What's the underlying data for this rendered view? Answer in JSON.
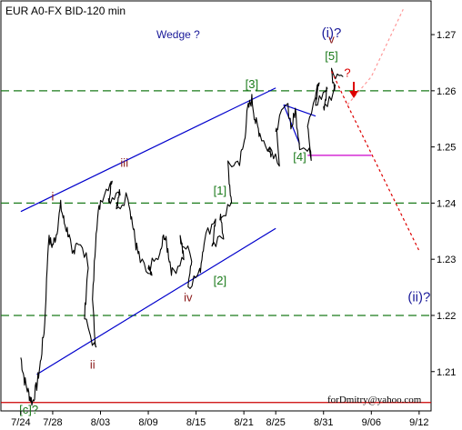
{
  "chart_data": {
    "type": "line",
    "title": "EUR A0-FX BID-120 min",
    "subtitle": "Wedge ?",
    "watermark": "forDmitry@yahoo.com",
    "x_ticks": [
      "7/24",
      "7/28",
      "8/03",
      "8/09",
      "8/15",
      "8/21",
      "8/25",
      "8/31",
      "9/06",
      "9/12"
    ],
    "y_ticks": [
      "1.27",
      "1.26",
      "1.25",
      "1.24",
      "1.23",
      "1.22",
      "1.21"
    ],
    "ylim": [
      1.203,
      1.276
    ],
    "grid": false,
    "series": [
      {
        "points": [
          [
            "7/24",
            1.2125
          ],
          [
            "7/24",
            1.2085
          ],
          [
            "7/25",
            1.206
          ],
          [
            "7/25",
            1.2045
          ],
          [
            "7/26",
            1.2075
          ],
          [
            "7/26",
            1.2115
          ],
          [
            "7/27",
            1.2185
          ],
          [
            "7/27",
            1.2335
          ],
          [
            "7/28",
            1.2325
          ],
          [
            "7/28",
            1.2345
          ],
          [
            "7/29",
            1.2395
          ],
          [
            "7/29",
            1.2365
          ],
          [
            "7/30",
            1.2345
          ],
          [
            "7/30",
            1.2305
          ],
          [
            "7/31",
            1.2335
          ],
          [
            "8/01",
            1.2295
          ],
          [
            "8/01",
            1.2195
          ],
          [
            "8/02",
            1.2135
          ],
          [
            "8/02",
            1.2225
          ],
          [
            "8/02",
            1.2355
          ],
          [
            "8/03",
            1.2405
          ],
          [
            "8/04",
            1.2445
          ],
          [
            "8/04",
            1.2405
          ],
          [
            "8/05",
            1.2425
          ],
          [
            "8/05",
            1.2385
          ],
          [
            "8/06",
            1.2415
          ],
          [
            "8/07",
            1.2365
          ],
          [
            "8/07",
            1.2325
          ],
          [
            "8/08",
            1.2295
          ],
          [
            "8/09",
            1.2265
          ],
          [
            "8/09",
            1.2285
          ],
          [
            "8/10",
            1.2305
          ],
          [
            "8/11",
            1.2345
          ],
          [
            "8/11",
            1.2315
          ],
          [
            "8/12",
            1.2275
          ],
          [
            "8/13",
            1.2305
          ],
          [
            "8/13",
            1.2335
          ],
          [
            "8/14",
            1.2305
          ],
          [
            "8/14",
            1.2255
          ],
          [
            "8/15",
            1.2275
          ],
          [
            "8/16",
            1.2335
          ],
          [
            "8/17",
            1.2375
          ],
          [
            "8/17",
            1.2315
          ],
          [
            "8/18",
            1.2345
          ],
          [
            "8/18",
            1.2375
          ],
          [
            "8/19",
            1.2395
          ],
          [
            "8/19",
            1.2465
          ],
          [
            "8/20",
            1.2475
          ],
          [
            "8/21",
            1.2505
          ],
          [
            "8/21",
            1.2565
          ],
          [
            "8/22",
            1.2585
          ],
          [
            "8/22",
            1.2545
          ],
          [
            "8/23",
            1.2525
          ],
          [
            "8/24",
            1.2485
          ],
          [
            "8/24",
            1.2505
          ],
          [
            "8/25",
            1.2475
          ],
          [
            "8/25",
            1.2535
          ],
          [
            "8/26",
            1.2575
          ],
          [
            "8/27",
            1.2535
          ],
          [
            "8/27",
            1.2565
          ],
          [
            "8/28",
            1.2505
          ],
          [
            "8/29",
            1.2485
          ],
          [
            "8/29",
            1.2545
          ],
          [
            "8/30",
            1.2615
          ],
          [
            "8/30",
            1.2575
          ],
          [
            "8/31",
            1.2605
          ],
          [
            "8/31",
            1.2565
          ],
          [
            "9/01",
            1.2605
          ],
          [
            "9/01",
            1.2635
          ],
          [
            "9/02",
            1.2625
          ]
        ]
      }
    ],
    "levels": [
      {
        "price": 1.26,
        "style": "dashed",
        "color": "#1a7a1a"
      },
      {
        "price": 1.24,
        "style": "dashed",
        "color": "#1a7a1a"
      },
      {
        "price": 1.22,
        "style": "dashed",
        "color": "#1a7a1a"
      },
      {
        "price": 1.2485,
        "style": "solid",
        "color": "#cc00cc",
        "from": "8/29",
        "to": "9/06"
      },
      {
        "price": 1.2045,
        "style": "solid",
        "color": "#cc0000"
      }
    ],
    "trendlines": [
      {
        "from": [
          "7/24",
          1.2385
        ],
        "to": [
          "8/25",
          1.2605
        ],
        "color": "#0000cc"
      },
      {
        "from": [
          "7/26",
          1.2095
        ],
        "to": [
          "8/25",
          1.2355
        ],
        "color": "#0000cc"
      },
      {
        "from": [
          "8/26",
          1.2575
        ],
        "to": [
          "8/30",
          1.2555
        ],
        "color": "#0000cc"
      },
      {
        "from": [
          "8/26",
          1.2575
        ],
        "to": [
          "8/28",
          1.2505
        ],
        "color": "#0000cc"
      }
    ],
    "projections": [
      {
        "points": [
          [
            "9/01",
            1.2635
          ],
          [
            "9/03",
            1.2575
          ],
          [
            "9/12",
            1.2315
          ]
        ],
        "color": "#dd0000",
        "style": "dotted"
      },
      {
        "points": [
          [
            "9/03",
            1.2575
          ],
          [
            "9/06",
            1.2625
          ],
          [
            "9/10",
            1.2745
          ]
        ],
        "color": "#ff9999",
        "style": "dotted"
      }
    ],
    "annotations": [
      {
        "text": "i",
        "x": "7/28",
        "y": 1.2405,
        "color": "#8b1a1a"
      },
      {
        "text": "ii",
        "x": "8/02",
        "y": 1.2105,
        "color": "#8b1a1a"
      },
      {
        "text": "iii",
        "x": "8/06",
        "y": 1.2465,
        "color": "#8b1a1a"
      },
      {
        "text": "iv",
        "x": "8/14",
        "y": 1.2225,
        "color": "#8b1a1a"
      },
      {
        "text": "v",
        "x": "9/01",
        "y": 1.2685,
        "color": "#8b1a1a"
      },
      {
        "text": "[1]",
        "x": "8/18",
        "y": 1.2415,
        "color": "#1a7a1a"
      },
      {
        "text": "[2]",
        "x": "8/18",
        "y": 1.2255,
        "color": "#1a7a1a"
      },
      {
        "text": "[3]",
        "x": "8/22",
        "y": 1.2605,
        "color": "#1a7a1a"
      },
      {
        "text": "[4]",
        "x": "8/28",
        "y": 1.2475,
        "color": "#1a7a1a"
      },
      {
        "text": "[5]",
        "x": "9/01",
        "y": 1.2655,
        "color": "#1a7a1a"
      },
      {
        "text": "[c]?",
        "x": "7/25",
        "y": 1.2025,
        "color": "#1a7a1a"
      },
      {
        "text": "(i)?",
        "x": "9/01",
        "y": 1.2695,
        "color": "#1a1a99"
      },
      {
        "text": "(ii)?",
        "x": "9/12",
        "y": 1.2225,
        "color": "#1a1a99"
      },
      {
        "text": "?",
        "x": "9/03",
        "y": 1.2625,
        "color": "#dd0000"
      }
    ]
  }
}
